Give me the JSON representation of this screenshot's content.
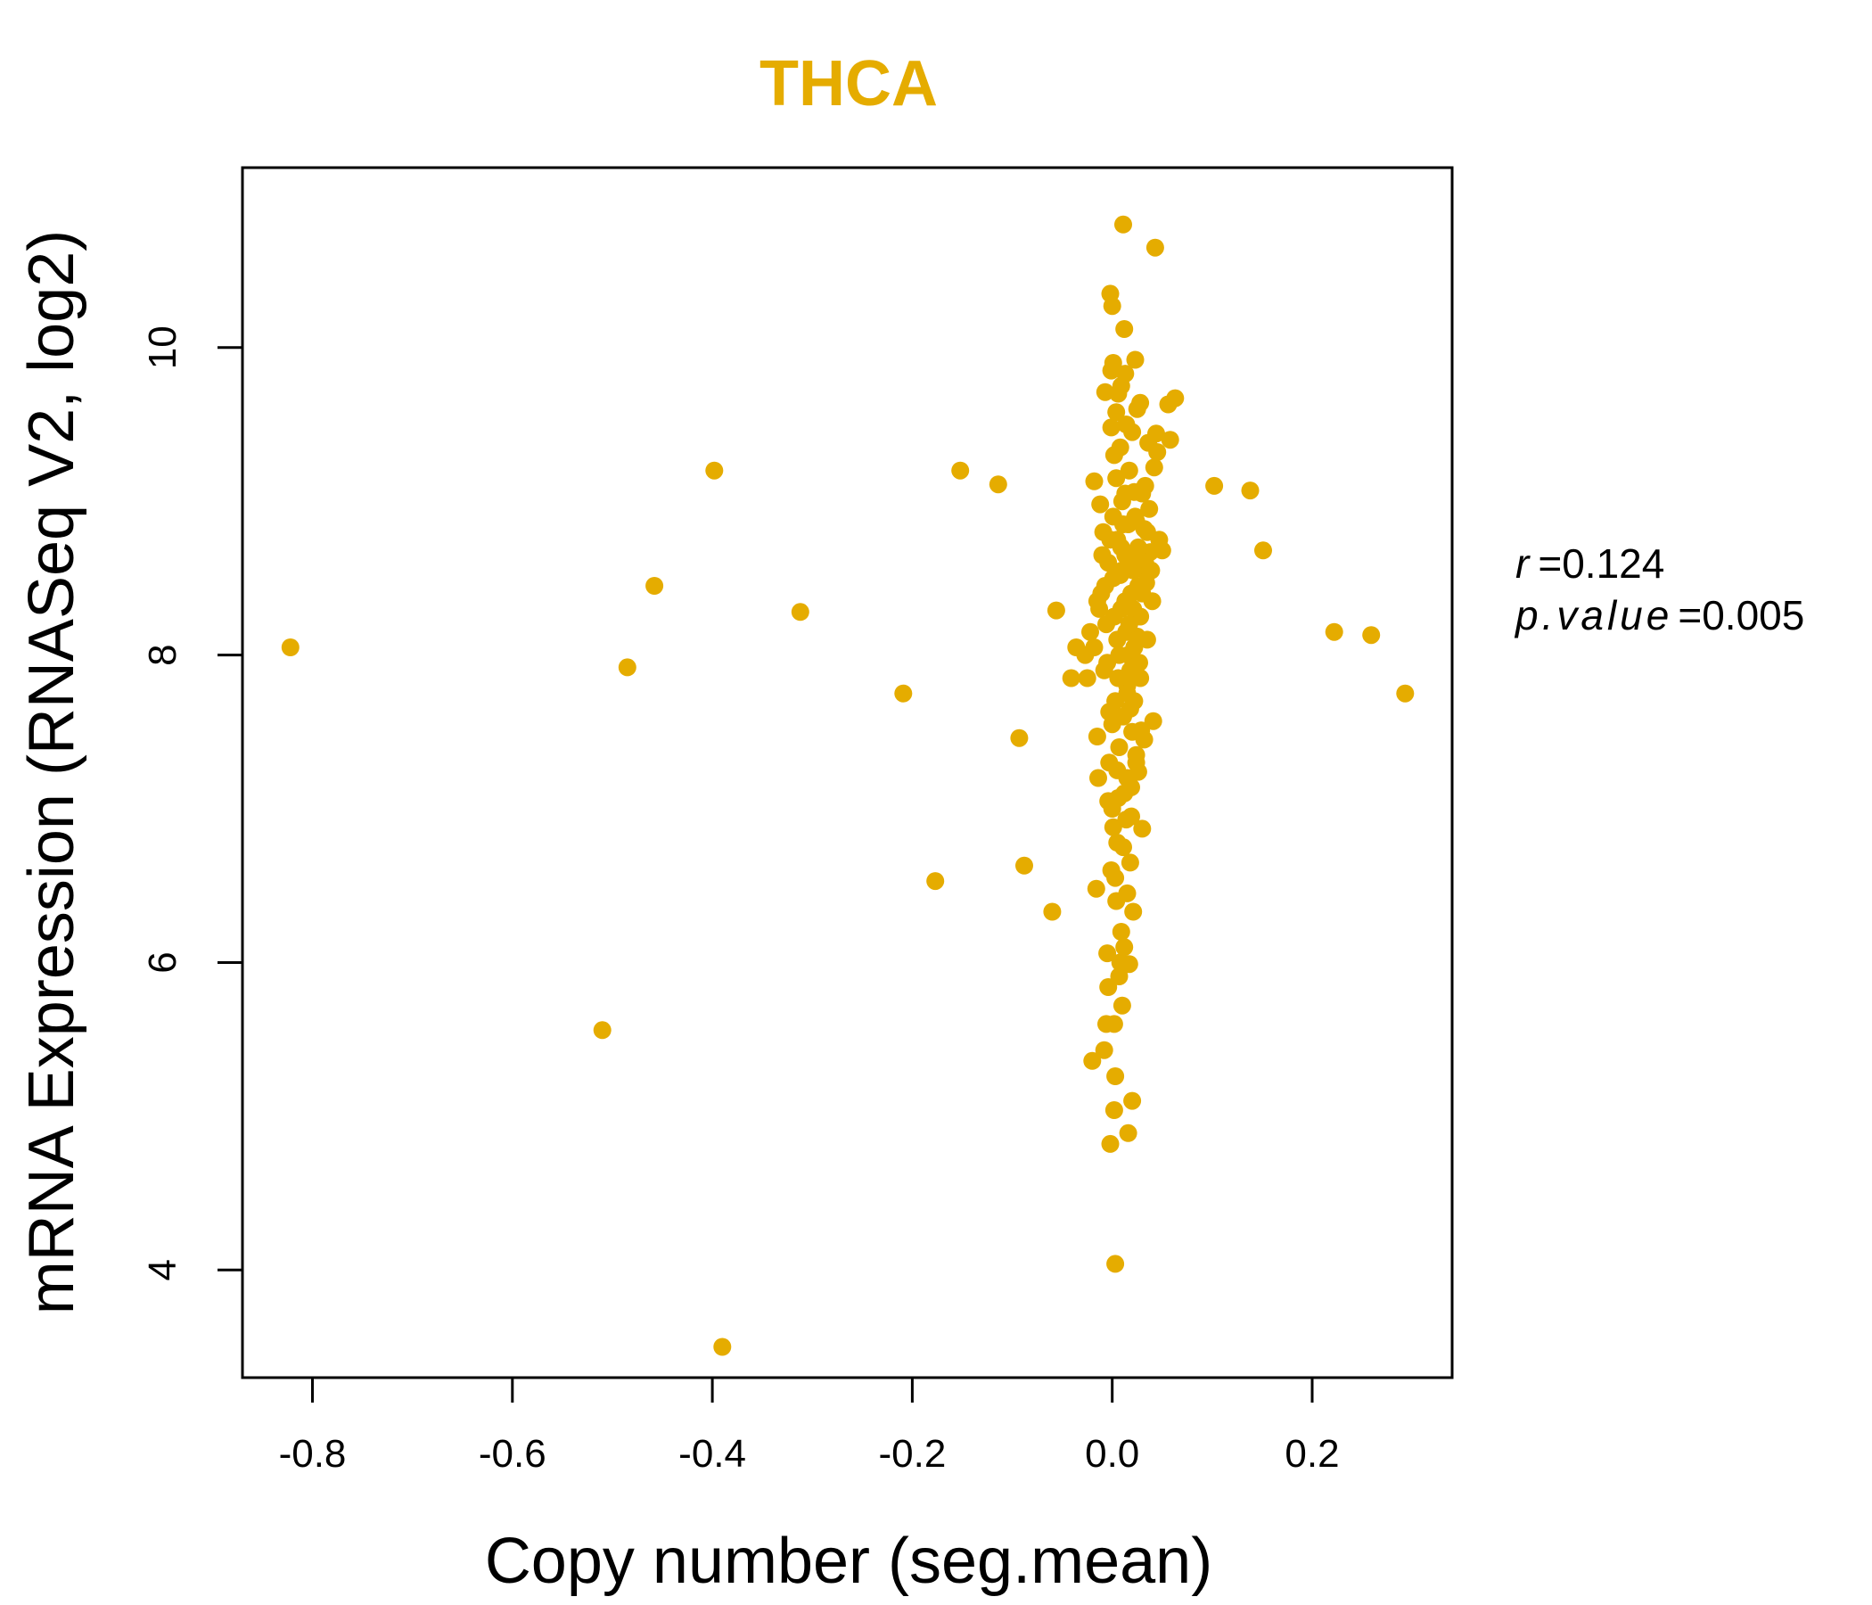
{
  "chart_data": {
    "type": "scatter",
    "title": "THCA",
    "xlabel": "Copy number (seg.mean)",
    "ylabel": "mRNA Expression (RNASeq V2, log2)",
    "xlim": [
      -0.87,
      0.34
    ],
    "ylim": [
      3.3,
      11.17
    ],
    "xticks": [
      -0.8,
      -0.6,
      -0.4,
      -0.2,
      0.0,
      0.2
    ],
    "xtick_labels": [
      "-0.8",
      "-0.6",
      "-0.4",
      "-0.2",
      "0.0",
      "0.2"
    ],
    "yticks": [
      4,
      6,
      8,
      10
    ],
    "ytick_labels": [
      "4",
      "6",
      "8",
      "10"
    ],
    "point_color": "#E5AC00",
    "annotation": {
      "r_label": "r",
      "r_value": "0.124",
      "p_label": "p.value",
      "p_value": "0.005"
    },
    "points": [
      [
        -0.822,
        8.05
      ],
      [
        -0.51,
        5.56
      ],
      [
        -0.485,
        7.92
      ],
      [
        -0.458,
        8.45
      ],
      [
        -0.398,
        9.2
      ],
      [
        -0.39,
        3.5
      ],
      [
        -0.312,
        8.28
      ],
      [
        -0.209,
        7.75
      ],
      [
        -0.177,
        6.53
      ],
      [
        -0.152,
        9.2
      ],
      [
        -0.114,
        9.11
      ],
      [
        -0.093,
        7.46
      ],
      [
        -0.088,
        6.63
      ],
      [
        -0.06,
        6.33
      ],
      [
        -0.056,
        8.29
      ],
      [
        -0.041,
        7.85
      ],
      [
        -0.036,
        8.05
      ],
      [
        -0.027,
        8.0
      ],
      [
        -0.025,
        7.85
      ],
      [
        -0.022,
        8.15
      ],
      [
        -0.02,
        5.36
      ],
      [
        -0.018,
        9.13
      ],
      [
        -0.016,
        6.48
      ],
      [
        -0.015,
        7.47
      ],
      [
        -0.014,
        7.2
      ],
      [
        -0.012,
        8.98
      ],
      [
        -0.01,
        8.65
      ],
      [
        -0.008,
        5.43
      ],
      [
        -0.007,
        9.71
      ],
      [
        -0.006,
        5.6
      ],
      [
        -0.005,
        6.06
      ],
      [
        -0.004,
        5.84
      ],
      [
        -0.003,
        7.63
      ],
      [
        -0.002,
        4.82
      ],
      [
        -0.002,
        10.35
      ],
      [
        -0.001,
        9.48
      ],
      [
        0.0,
        10.27
      ],
      [
        0.001,
        9.9
      ],
      [
        0.001,
        6.88
      ],
      [
        0.002,
        5.6
      ],
      [
        0.002,
        5.04
      ],
      [
        0.003,
        4.04
      ],
      [
        0.003,
        5.26
      ],
      [
        0.004,
        9.58
      ],
      [
        0.005,
        6.78
      ],
      [
        0.006,
        7.07
      ],
      [
        0.007,
        5.91
      ],
      [
        0.008,
        8.52
      ],
      [
        0.009,
        6.2
      ],
      [
        0.01,
        5.72
      ],
      [
        0.011,
        10.8
      ],
      [
        0.012,
        10.12
      ],
      [
        0.013,
        9.83
      ],
      [
        0.014,
        6.93
      ],
      [
        0.015,
        7.8
      ],
      [
        0.016,
        4.89
      ],
      [
        0.017,
        5.99
      ],
      [
        0.018,
        6.65
      ],
      [
        0.019,
        7.14
      ],
      [
        0.02,
        5.1
      ],
      [
        0.021,
        6.33
      ],
      [
        0.022,
        9.06
      ],
      [
        0.023,
        9.92
      ],
      [
        0.024,
        8.87
      ],
      [
        0.025,
        8.12
      ],
      [
        0.026,
        7.24
      ],
      [
        0.027,
        8.68
      ],
      [
        0.028,
        9.64
      ],
      [
        0.029,
        7.51
      ],
      [
        0.03,
        6.87
      ],
      [
        0.031,
        8.56
      ],
      [
        0.032,
        8.82
      ],
      [
        0.034,
        8.47
      ],
      [
        0.035,
        8.8
      ],
      [
        0.036,
        9.38
      ],
      [
        0.038,
        8.67
      ],
      [
        0.04,
        8.35
      ],
      [
        0.041,
        7.57
      ],
      [
        0.042,
        9.22
      ],
      [
        0.043,
        10.65
      ],
      [
        0.044,
        9.44
      ],
      [
        0.045,
        9.32
      ],
      [
        0.047,
        8.75
      ],
      [
        0.05,
        8.68
      ],
      [
        0.056,
        9.63
      ],
      [
        0.058,
        9.4
      ],
      [
        0.063,
        9.67
      ],
      [
        0.102,
        9.1
      ],
      [
        0.138,
        9.07
      ],
      [
        0.151,
        8.68
      ],
      [
        0.222,
        8.15
      ],
      [
        0.259,
        8.13
      ],
      [
        0.293,
        7.75
      ],
      [
        -0.011,
        8.4
      ],
      [
        -0.013,
        8.3
      ],
      [
        -0.009,
        8.8
      ],
      [
        -0.006,
        8.2
      ],
      [
        -0.008,
        7.9
      ],
      [
        -0.004,
        8.6
      ],
      [
        -0.003,
        7.3
      ],
      [
        -0.001,
        6.6
      ],
      [
        0.0,
        7.0
      ],
      [
        0.001,
        8.9
      ],
      [
        0.002,
        9.3
      ],
      [
        0.003,
        7.7
      ],
      [
        0.004,
        6.4
      ],
      [
        0.005,
        8.1
      ],
      [
        0.006,
        9.7
      ],
      [
        0.007,
        7.4
      ],
      [
        0.008,
        6.0
      ],
      [
        0.009,
        8.7
      ],
      [
        0.01,
        9.0
      ],
      [
        0.011,
        7.6
      ],
      [
        0.012,
        6.1
      ],
      [
        0.013,
        8.35
      ],
      [
        0.014,
        9.5
      ],
      [
        0.015,
        7.2
      ],
      [
        0.016,
        8.0
      ],
      [
        0.017,
        9.2
      ],
      [
        0.018,
        7.9
      ],
      [
        0.019,
        8.6
      ],
      [
        0.02,
        7.5
      ],
      [
        0.021,
        8.3
      ],
      [
        0.022,
        7.7
      ],
      [
        0.023,
        8.9
      ],
      [
        0.024,
        7.3
      ],
      [
        0.025,
        9.6
      ],
      [
        0.026,
        8.45
      ],
      [
        0.027,
        7.95
      ],
      [
        0.028,
        8.25
      ],
      [
        0.03,
        9.05
      ],
      [
        0.032,
        7.45
      ],
      [
        0.033,
        8.6
      ],
      [
        -0.007,
        8.45
      ],
      [
        -0.005,
        7.95
      ],
      [
        -0.002,
        8.75
      ],
      [
        0.0,
        7.55
      ],
      [
        0.002,
        8.25
      ],
      [
        0.004,
        9.15
      ],
      [
        0.006,
        7.85
      ],
      [
        0.008,
        9.35
      ],
      [
        0.01,
        8.55
      ],
      [
        0.012,
        7.1
      ],
      [
        0.014,
        8.15
      ],
      [
        0.016,
        8.85
      ],
      [
        0.018,
        7.65
      ],
      [
        0.02,
        9.45
      ],
      [
        0.022,
        8.05
      ],
      [
        0.024,
        7.35
      ],
      [
        0.026,
        8.7
      ],
      [
        0.028,
        7.85
      ],
      [
        0.03,
        8.4
      ],
      [
        0.035,
        8.1
      ],
      [
        -0.004,
        7.05
      ],
      [
        -0.001,
        9.85
      ],
      [
        0.003,
        6.55
      ],
      [
        0.005,
        7.25
      ],
      [
        0.009,
        9.75
      ],
      [
        0.011,
        6.75
      ],
      [
        0.013,
        9.05
      ],
      [
        0.015,
        6.45
      ],
      [
        0.017,
        8.6
      ],
      [
        0.019,
        6.95
      ],
      [
        0.001,
        8.5
      ],
      [
        0.005,
        8.75
      ],
      [
        0.009,
        8.3
      ],
      [
        0.013,
        8.65
      ],
      [
        0.017,
        8.2
      ],
      [
        0.021,
        8.55
      ],
      [
        0.007,
        8.0
      ],
      [
        0.011,
        8.85
      ],
      [
        0.015,
        7.75
      ],
      [
        0.019,
        8.4
      ],
      [
        -0.015,
        8.35
      ],
      [
        -0.018,
        8.05
      ],
      [
        0.037,
        8.95
      ],
      [
        0.039,
        8.55
      ],
      [
        0.033,
        9.1
      ]
    ]
  }
}
